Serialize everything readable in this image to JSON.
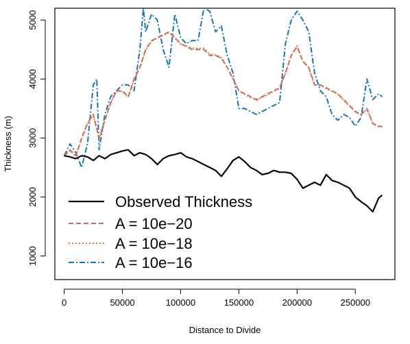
{
  "chart_data": {
    "type": "line",
    "title": "",
    "xlabel": "Distance to Divide",
    "ylabel": "Thickness (m)",
    "xlim": [
      -8000,
      284000
    ],
    "ylim": [
      600,
      5200
    ],
    "x_ticks": [
      0,
      50000,
      100000,
      150000,
      200000,
      250000
    ],
    "x_tick_labels": [
      "0",
      "50000",
      "100000",
      "150000",
      "200000",
      "250000"
    ],
    "y_ticks": [
      1000,
      2000,
      3000,
      4000,
      5000
    ],
    "y_tick_labels": [
      "1000",
      "2000",
      "3000",
      "4000",
      "5000"
    ],
    "grid": false,
    "legend_position": "bottom-left",
    "series": [
      {
        "name": "Observed Thickness",
        "color": "#000000",
        "dash": "solid",
        "x": [
          0,
          5000,
          10000,
          15000,
          20000,
          25000,
          30000,
          35000,
          40000,
          45000,
          50000,
          55000,
          60000,
          65000,
          70000,
          75000,
          80000,
          85000,
          90000,
          95000,
          100000,
          105000,
          110000,
          115000,
          120000,
          125000,
          130000,
          135000,
          140000,
          145000,
          150000,
          155000,
          160000,
          165000,
          170000,
          175000,
          180000,
          185000,
          190000,
          195000,
          200000,
          205000,
          210000,
          215000,
          220000,
          225000,
          230000,
          235000,
          240000,
          245000,
          250000,
          255000,
          260000,
          265000,
          270000,
          273000
        ],
        "y": [
          2700,
          2680,
          2650,
          2700,
          2680,
          2620,
          2700,
          2650,
          2720,
          2750,
          2780,
          2800,
          2700,
          2750,
          2720,
          2650,
          2550,
          2650,
          2700,
          2720,
          2750,
          2680,
          2650,
          2600,
          2550,
          2500,
          2450,
          2350,
          2480,
          2620,
          2680,
          2600,
          2500,
          2450,
          2380,
          2400,
          2450,
          2420,
          2420,
          2400,
          2300,
          2150,
          2200,
          2250,
          2200,
          2380,
          2280,
          2250,
          2200,
          2150,
          2000,
          1920,
          1850,
          1750,
          1980,
          2030
        ]
      },
      {
        "name": "A = 10e−20",
        "color": "#cc6677",
        "dash": "dashed",
        "x": [
          0,
          5000,
          10000,
          15000,
          20000,
          25000,
          30000,
          35000,
          40000,
          45000,
          50000,
          55000,
          60000,
          65000,
          70000,
          75000,
          80000,
          85000,
          90000,
          95000,
          100000,
          105000,
          110000,
          115000,
          120000,
          125000,
          130000,
          135000,
          140000,
          145000,
          150000,
          155000,
          160000,
          165000,
          170000,
          175000,
          180000,
          185000,
          190000,
          195000,
          200000,
          205000,
          210000,
          215000,
          220000,
          225000,
          230000,
          235000,
          240000,
          245000,
          250000,
          255000,
          260000,
          265000,
          270000,
          273000
        ],
        "y": [
          2700,
          2800,
          2700,
          3000,
          3250,
          3400,
          3000,
          3300,
          3600,
          3800,
          3800,
          3700,
          4000,
          4200,
          4500,
          4650,
          4700,
          4750,
          4800,
          4700,
          4600,
          4550,
          4500,
          4500,
          4500,
          4400,
          4400,
          4350,
          4200,
          4000,
          3800,
          3750,
          3700,
          3650,
          3700,
          3750,
          3800,
          3850,
          4100,
          4400,
          4550,
          4300,
          4200,
          3900,
          3900,
          3850,
          3800,
          3750,
          3650,
          3550,
          3450,
          3400,
          3500,
          3250,
          3200,
          3200
        ]
      },
      {
        "name": "A = 10e−18",
        "color": "#dd7722",
        "dash": "dotted",
        "x": [
          0,
          5000,
          10000,
          15000,
          20000,
          25000,
          30000,
          35000,
          40000,
          45000,
          50000,
          55000,
          60000,
          65000,
          70000,
          75000,
          80000,
          85000,
          90000,
          95000,
          100000,
          105000,
          110000,
          115000,
          120000,
          125000,
          130000,
          135000,
          140000,
          145000,
          150000,
          155000,
          160000,
          165000,
          170000,
          175000,
          180000,
          185000,
          190000,
          195000,
          200000,
          205000,
          210000,
          215000,
          220000,
          225000,
          230000,
          235000,
          240000,
          245000,
          250000,
          255000,
          260000,
          265000,
          270000,
          273000
        ],
        "y": [
          2690,
          2790,
          2690,
          2990,
          3240,
          3390,
          2990,
          3290,
          3590,
          3790,
          3790,
          3690,
          3990,
          4190,
          4490,
          4640,
          4690,
          4740,
          4790,
          4690,
          4590,
          4560,
          4520,
          4520,
          4520,
          4420,
          4410,
          4360,
          4200,
          4000,
          3800,
          3740,
          3690,
          3640,
          3690,
          3740,
          3790,
          3840,
          4100,
          4400,
          4560,
          4300,
          4190,
          3900,
          3890,
          3840,
          3790,
          3740,
          3640,
          3540,
          3440,
          3390,
          3490,
          3240,
          3190,
          3190
        ]
      },
      {
        "name": "A = 10e−16",
        "color": "#1177bb",
        "dash": "dashdot",
        "x": [
          0,
          5000,
          10000,
          15000,
          20000,
          25000,
          28000,
          30000,
          35000,
          40000,
          45000,
          50000,
          55000,
          60000,
          65000,
          68000,
          70000,
          75000,
          80000,
          85000,
          90000,
          95000,
          100000,
          105000,
          110000,
          115000,
          120000,
          125000,
          130000,
          135000,
          140000,
          145000,
          150000,
          155000,
          160000,
          165000,
          170000,
          175000,
          180000,
          185000,
          190000,
          195000,
          200000,
          205000,
          210000,
          215000,
          220000,
          225000,
          230000,
          235000,
          240000,
          245000,
          250000,
          255000,
          260000,
          265000,
          270000,
          273000
        ],
        "y": [
          2700,
          2900,
          2750,
          2500,
          2900,
          3900,
          4000,
          2800,
          3400,
          3700,
          3800,
          3900,
          3900,
          3800,
          4500,
          5200,
          4800,
          5100,
          5000,
          4500,
          4200,
          5100,
          4700,
          4600,
          4650,
          4650,
          5200,
          5150,
          4800,
          4900,
          4400,
          4100,
          3500,
          3500,
          3450,
          3400,
          3450,
          3500,
          3550,
          3600,
          4600,
          5000,
          5150,
          5000,
          4800,
          4100,
          3800,
          3700,
          3400,
          3300,
          3400,
          3350,
          3200,
          3350,
          4000,
          3650,
          3750,
          3700
        ]
      }
    ]
  }
}
